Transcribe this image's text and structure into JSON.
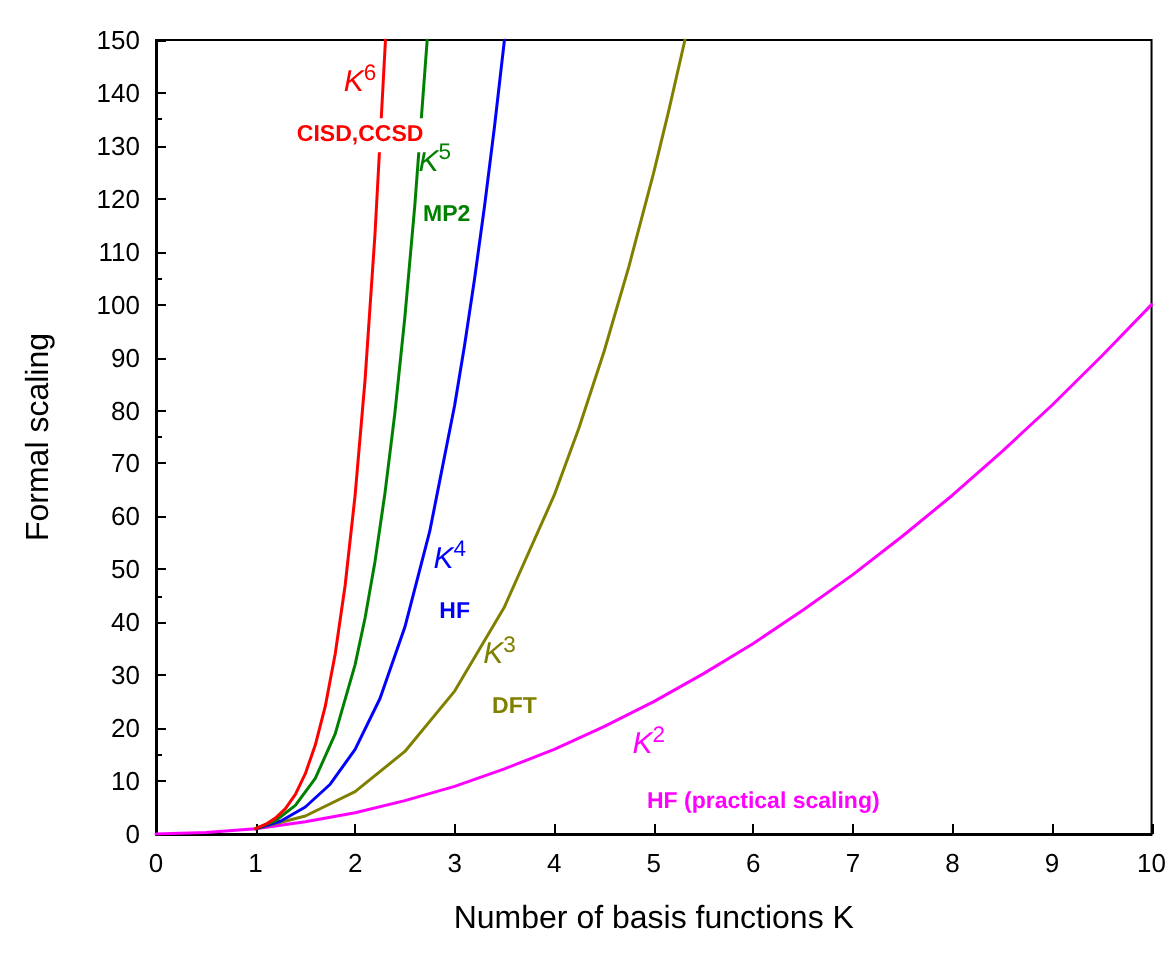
{
  "chart_data": {
    "type": "line",
    "xlabel": "Number of basis functions K",
    "ylabel": "Formal scaling",
    "xlim": [
      0,
      10
    ],
    "xticks": [
      0,
      1,
      2,
      3,
      4,
      5,
      6,
      7,
      8,
      9,
      10
    ],
    "ylim": [
      0,
      150
    ],
    "yticks": [
      0,
      10,
      20,
      30,
      40,
      50,
      60,
      70,
      80,
      90,
      100,
      110,
      120,
      130,
      140,
      150
    ],
    "grid": false,
    "legend": false,
    "marker": "none",
    "line_style": "solid",
    "series": [
      {
        "name": "K$^{6}$",
        "color": "#ff0000",
        "x": [
          1,
          1.1,
          1.2,
          1.3,
          1.4,
          1.5,
          1.6,
          1.7,
          1.8,
          1.9,
          2,
          2.1,
          2.2,
          2.305
        ],
        "values": [
          1,
          1.8,
          3,
          4.8,
          7.5,
          11.4,
          16.8,
          24.1,
          34,
          47,
          64,
          85.8,
          113.4,
          150
        ]
      },
      {
        "name": "K$^{5}$",
        "color": "#008000",
        "x": [
          1,
          1.2,
          1.4,
          1.6,
          1.8,
          2,
          2.1,
          2.2,
          2.3,
          2.4,
          2.5,
          2.6,
          2.724
        ],
        "values": [
          1,
          2.5,
          5.4,
          10.5,
          18.9,
          32,
          40.8,
          51.5,
          64.4,
          79.6,
          97.7,
          118.8,
          150
        ]
      },
      {
        "name": "K$^{4}$",
        "color": "#0000ff",
        "x": [
          1,
          1.25,
          1.5,
          1.75,
          2,
          2.25,
          2.5,
          2.75,
          3,
          3.1,
          3.2,
          3.3,
          3.4,
          3.5
        ],
        "values": [
          1,
          2.4,
          5.1,
          9.4,
          16,
          25.6,
          39.1,
          57.2,
          81,
          92.4,
          104.9,
          118.6,
          133.6,
          150
        ]
      },
      {
        "name": "K$^{3}$",
        "color": "#808000",
        "x": [
          1,
          1.5,
          2,
          2.5,
          3,
          3.5,
          4,
          4.25,
          4.5,
          4.75,
          5,
          5.15,
          5.313
        ],
        "values": [
          1,
          3.4,
          8,
          15.6,
          27,
          42.9,
          64,
          76.8,
          91.1,
          107.2,
          125,
          136.6,
          150
        ]
      },
      {
        "name": "K$^{2}$",
        "color": "#ff00ff",
        "x": [
          0,
          0.5,
          1,
          1.5,
          2,
          2.5,
          3,
          3.5,
          4,
          4.5,
          5,
          5.5,
          6,
          6.5,
          7,
          7.5,
          8,
          8.5,
          9,
          9.5,
          10
        ],
        "values": [
          0,
          0.3,
          1,
          2.3,
          4,
          6.3,
          9,
          12.3,
          16,
          20.3,
          25,
          30.3,
          36,
          42.3,
          49,
          56.3,
          64,
          72.3,
          81,
          90.3,
          100
        ]
      }
    ],
    "annotations": [
      "CISD,CCSD",
      "MP2",
      "HF",
      "DFT",
      "HF (practical scaling)"
    ]
  }
}
